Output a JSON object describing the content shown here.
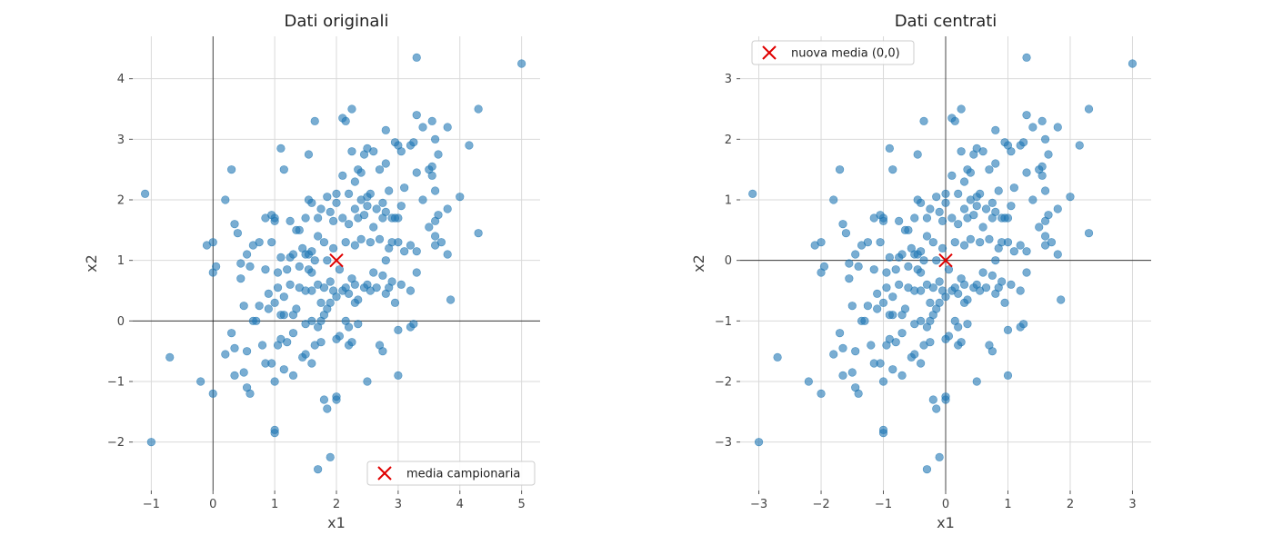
{
  "colors": {
    "points": "#1f77b4",
    "mean_marker": "#e00000"
  },
  "chart_data": [
    {
      "type": "scatter",
      "title": "Dati originali",
      "xlabel": "x1",
      "ylabel": "x2",
      "xlim": [
        -1.3,
        5.3
      ],
      "ylim": [
        -2.8,
        4.7
      ],
      "xticks": [
        -1,
        0,
        1,
        2,
        3,
        4,
        5
      ],
      "yticks": [
        -2,
        -1,
        0,
        1,
        2,
        3,
        4
      ],
      "grid": true,
      "legend": {
        "placement": "lower-right",
        "label": "media campionaria"
      },
      "mean": [
        2.0,
        1.0
      ],
      "points": [
        [
          -1.1,
          2.1
        ],
        [
          -1.0,
          -2.0
        ],
        [
          -0.7,
          -0.6
        ],
        [
          -0.2,
          -1.0
        ],
        [
          -0.1,
          1.25
        ],
        [
          0.0,
          1.3
        ],
        [
          0.0,
          0.8
        ],
        [
          0.0,
          -1.2
        ],
        [
          0.05,
          0.9
        ],
        [
          0.2,
          2.0
        ],
        [
          0.2,
          -0.55
        ],
        [
          0.3,
          2.5
        ],
        [
          0.3,
          -0.2
        ],
        [
          0.35,
          1.6
        ],
        [
          0.35,
          -0.45
        ],
        [
          0.35,
          -0.9
        ],
        [
          0.4,
          1.45
        ],
        [
          0.45,
          0.95
        ],
        [
          0.45,
          0.7
        ],
        [
          0.5,
          0.25
        ],
        [
          0.5,
          -0.85
        ],
        [
          0.55,
          1.1
        ],
        [
          0.55,
          -0.5
        ],
        [
          0.55,
          -1.1
        ],
        [
          0.6,
          0.9
        ],
        [
          0.6,
          -1.2
        ],
        [
          0.65,
          1.25
        ],
        [
          0.65,
          0.0
        ],
        [
          0.7,
          0.0
        ],
        [
          0.75,
          1.3
        ],
        [
          0.75,
          0.25
        ],
        [
          0.8,
          -0.4
        ],
        [
          0.85,
          1.7
        ],
        [
          0.85,
          0.85
        ],
        [
          0.85,
          -0.7
        ],
        [
          0.9,
          0.45
        ],
        [
          0.9,
          0.2
        ],
        [
          0.95,
          1.75
        ],
        [
          0.95,
          1.3
        ],
        [
          0.95,
          -0.7
        ],
        [
          1.0,
          1.65
        ],
        [
          1.0,
          1.7
        ],
        [
          1.0,
          0.3
        ],
        [
          1.0,
          -1.0
        ],
        [
          1.0,
          -1.8
        ],
        [
          1.0,
          -1.85
        ],
        [
          1.05,
          0.8
        ],
        [
          1.05,
          0.55
        ],
        [
          1.05,
          -0.4
        ],
        [
          1.1,
          2.85
        ],
        [
          1.1,
          1.05
        ],
        [
          1.1,
          0.1
        ],
        [
          1.1,
          -0.3
        ],
        [
          1.15,
          2.5
        ],
        [
          1.15,
          0.4
        ],
        [
          1.15,
          0.1
        ],
        [
          1.15,
          -0.8
        ],
        [
          1.2,
          0.85
        ],
        [
          1.2,
          -0.35
        ],
        [
          1.25,
          1.65
        ],
        [
          1.25,
          1.05
        ],
        [
          1.25,
          0.6
        ],
        [
          1.3,
          1.1
        ],
        [
          1.3,
          0.1
        ],
        [
          1.3,
          -0.2
        ],
        [
          1.3,
          -0.9
        ],
        [
          1.35,
          1.5
        ],
        [
          1.35,
          0.2
        ],
        [
          1.4,
          1.5
        ],
        [
          1.4,
          0.9
        ],
        [
          1.4,
          0.55
        ],
        [
          1.45,
          1.2
        ],
        [
          1.45,
          -0.6
        ],
        [
          1.5,
          1.7
        ],
        [
          1.5,
          1.1
        ],
        [
          1.5,
          0.5
        ],
        [
          1.5,
          -0.05
        ],
        [
          1.5,
          -0.55
        ],
        [
          1.55,
          2.75
        ],
        [
          1.55,
          2.0
        ],
        [
          1.55,
          1.1
        ],
        [
          1.55,
          0.85
        ],
        [
          1.6,
          1.95
        ],
        [
          1.6,
          1.15
        ],
        [
          1.6,
          0.8
        ],
        [
          1.6,
          0.5
        ],
        [
          1.6,
          0.0
        ],
        [
          1.6,
          -0.7
        ],
        [
          1.65,
          3.3
        ],
        [
          1.65,
          1.0
        ],
        [
          1.65,
          -0.4
        ],
        [
          1.7,
          1.7
        ],
        [
          1.7,
          1.4
        ],
        [
          1.7,
          0.6
        ],
        [
          1.7,
          -0.1
        ],
        [
          1.7,
          -2.45
        ],
        [
          1.75,
          1.85
        ],
        [
          1.75,
          0.3
        ],
        [
          1.75,
          0.0
        ],
        [
          1.75,
          -0.35
        ],
        [
          1.8,
          1.3
        ],
        [
          1.8,
          0.55
        ],
        [
          1.8,
          0.1
        ],
        [
          1.8,
          -1.3
        ],
        [
          1.85,
          2.05
        ],
        [
          1.85,
          1.0
        ],
        [
          1.85,
          0.2
        ],
        [
          1.85,
          -1.45
        ],
        [
          1.9,
          1.8
        ],
        [
          1.9,
          0.65
        ],
        [
          1.9,
          0.3
        ],
        [
          1.9,
          -2.25
        ],
        [
          1.95,
          1.65
        ],
        [
          1.95,
          1.2
        ],
        [
          1.95,
          0.5
        ],
        [
          2.0,
          2.1
        ],
        [
          2.0,
          1.95
        ],
        [
          2.0,
          0.4
        ],
        [
          2.0,
          -0.3
        ],
        [
          2.0,
          -1.25
        ],
        [
          2.0,
          -1.3
        ],
        [
          2.05,
          0.85
        ],
        [
          2.05,
          -0.25
        ],
        [
          2.1,
          3.35
        ],
        [
          2.1,
          2.4
        ],
        [
          2.1,
          1.7
        ],
        [
          2.1,
          0.5
        ],
        [
          2.15,
          3.3
        ],
        [
          2.15,
          1.3
        ],
        [
          2.15,
          0.55
        ],
        [
          2.15,
          0.0
        ],
        [
          2.2,
          2.1
        ],
        [
          2.2,
          1.6
        ],
        [
          2.2,
          0.45
        ],
        [
          2.2,
          -0.1
        ],
        [
          2.2,
          -0.4
        ],
        [
          2.25,
          3.5
        ],
        [
          2.25,
          2.8
        ],
        [
          2.25,
          0.7
        ],
        [
          2.25,
          -0.35
        ],
        [
          2.3,
          2.3
        ],
        [
          2.3,
          1.85
        ],
        [
          2.3,
          1.25
        ],
        [
          2.3,
          0.6
        ],
        [
          2.3,
          0.3
        ],
        [
          2.35,
          2.5
        ],
        [
          2.35,
          1.7
        ],
        [
          2.35,
          0.35
        ],
        [
          2.35,
          -0.05
        ],
        [
          2.4,
          2.45
        ],
        [
          2.4,
          2.0
        ],
        [
          2.4,
          1.35
        ],
        [
          2.45,
          2.75
        ],
        [
          2.45,
          1.75
        ],
        [
          2.45,
          0.55
        ],
        [
          2.5,
          2.85
        ],
        [
          2.5,
          2.05
        ],
        [
          2.5,
          1.9
        ],
        [
          2.5,
          0.6
        ],
        [
          2.5,
          -1.0
        ],
        [
          2.55,
          2.1
        ],
        [
          2.55,
          1.3
        ],
        [
          2.55,
          0.5
        ],
        [
          2.6,
          2.8
        ],
        [
          2.6,
          1.55
        ],
        [
          2.6,
          0.8
        ],
        [
          2.65,
          1.85
        ],
        [
          2.65,
          0.55
        ],
        [
          2.7,
          2.5
        ],
        [
          2.7,
          1.35
        ],
        [
          2.7,
          -0.4
        ],
        [
          2.75,
          1.95
        ],
        [
          2.75,
          1.7
        ],
        [
          2.75,
          0.75
        ],
        [
          2.75,
          -0.5
        ],
        [
          2.8,
          3.15
        ],
        [
          2.8,
          2.6
        ],
        [
          2.8,
          1.8
        ],
        [
          2.8,
          1.0
        ],
        [
          2.8,
          0.45
        ],
        [
          2.85,
          2.15
        ],
        [
          2.85,
          1.2
        ],
        [
          2.85,
          0.55
        ],
        [
          2.9,
          1.7
        ],
        [
          2.9,
          1.3
        ],
        [
          2.9,
          0.65
        ],
        [
          2.95,
          2.95
        ],
        [
          2.95,
          1.7
        ],
        [
          2.95,
          0.3
        ],
        [
          3.0,
          2.9
        ],
        [
          3.0,
          1.7
        ],
        [
          3.0,
          1.3
        ],
        [
          3.0,
          -0.15
        ],
        [
          3.0,
          -0.9
        ],
        [
          3.05,
          2.8
        ],
        [
          3.05,
          1.9
        ],
        [
          3.05,
          0.6
        ],
        [
          3.1,
          2.2
        ],
        [
          3.1,
          1.15
        ],
        [
          3.2,
          2.9
        ],
        [
          3.2,
          1.25
        ],
        [
          3.2,
          0.5
        ],
        [
          3.2,
          -0.1
        ],
        [
          3.25,
          2.95
        ],
        [
          3.25,
          -0.05
        ],
        [
          3.3,
          4.35
        ],
        [
          3.3,
          3.4
        ],
        [
          3.3,
          2.45
        ],
        [
          3.3,
          1.15
        ],
        [
          3.3,
          0.8
        ],
        [
          3.4,
          3.2
        ],
        [
          3.4,
          2.0
        ],
        [
          3.5,
          2.5
        ],
        [
          3.5,
          1.55
        ],
        [
          3.55,
          3.3
        ],
        [
          3.55,
          2.55
        ],
        [
          3.55,
          2.4
        ],
        [
          3.6,
          3.0
        ],
        [
          3.6,
          2.15
        ],
        [
          3.6,
          1.65
        ],
        [
          3.6,
          1.4
        ],
        [
          3.6,
          1.25
        ],
        [
          3.65,
          2.75
        ],
        [
          3.65,
          1.75
        ],
        [
          3.7,
          1.3
        ],
        [
          3.8,
          3.2
        ],
        [
          3.8,
          1.85
        ],
        [
          3.8,
          1.1
        ],
        [
          3.85,
          0.35
        ],
        [
          4.0,
          2.05
        ],
        [
          4.15,
          2.9
        ],
        [
          4.3,
          3.5
        ],
        [
          4.3,
          1.45
        ],
        [
          5.0,
          4.25
        ]
      ]
    },
    {
      "type": "scatter",
      "title": "Dati centrati",
      "xlabel": "x1",
      "ylabel": "x2",
      "xlim": [
        -3.3,
        3.3
      ],
      "ylim": [
        -3.8,
        3.7
      ],
      "xticks": [
        -3,
        -2,
        -1,
        0,
        1,
        2,
        3
      ],
      "yticks": [
        -3,
        -2,
        -1,
        0,
        1,
        2,
        3
      ],
      "grid": true,
      "legend": {
        "placement": "upper-left",
        "label": "nuova media (0,0)"
      },
      "mean": [
        0,
        0
      ]
    }
  ]
}
